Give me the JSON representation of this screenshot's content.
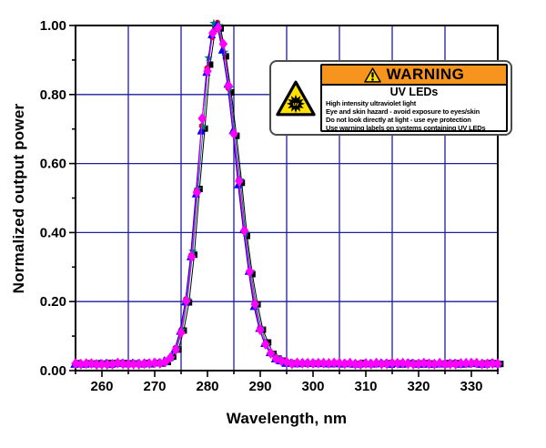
{
  "warning_label": {
    "header": "WARNING",
    "title": "UV LEDs",
    "icon_text": "UV",
    "header_bg": "#F7941D",
    "lines": [
      "High intensity ultraviolet light",
      "Eye and skin hazard - avoid exposure to eyes/skin",
      "Do not look directly at light - use eye protection",
      "Use warning labels on systems containing UV LEDs"
    ]
  },
  "chart_data": {
    "type": "scatter",
    "title": "",
    "xlabel": "Wavelength, nm",
    "ylabel": "Normalized output power",
    "xlim": [
      255,
      335
    ],
    "ylim": [
      0,
      1.0
    ],
    "grid": true,
    "legend": "none",
    "grid_color": "#1E1E9E",
    "axis_color": "#000000",
    "x_tick_labels": [
      260,
      270,
      280,
      290,
      300,
      310,
      320,
      330
    ],
    "x_minor_tick_step": 5,
    "x_gridlines": [
      265,
      275,
      285,
      295,
      305,
      315,
      325
    ],
    "y_tick_labels": [
      "0.00",
      "0.20",
      "0.40",
      "0.60",
      "0.80",
      "1.00"
    ],
    "y_tick_values": [
      0,
      0.2,
      0.4,
      0.6,
      0.8,
      1.0
    ],
    "y_minor_tick_step": 0.1,
    "y_gridlines": [
      0.2,
      0.4,
      0.6,
      0.8
    ],
    "peak_nm": 281.5,
    "baseline": 0.02,
    "x_start": 255,
    "x_step": 1,
    "base_values": [
      0.02,
      0.02,
      0.02,
      0.02,
      0.02,
      0.02,
      0.02,
      0.02,
      0.02,
      0.02,
      0.02,
      0.02,
      0.02,
      0.02,
      0.02,
      0.021,
      0.022,
      0.027,
      0.038,
      0.063,
      0.114,
      0.203,
      0.338,
      0.516,
      0.712,
      0.885,
      0.986,
      0.992,
      0.933,
      0.826,
      0.688,
      0.54,
      0.401,
      0.282,
      0.189,
      0.123,
      0.078,
      0.051,
      0.036,
      0.027,
      0.023,
      0.021,
      0.021,
      0.02,
      0.02,
      0.02,
      0.02,
      0.02,
      0.02,
      0.02,
      0.02,
      0.02,
      0.02,
      0.02,
      0.02,
      0.02,
      0.02,
      0.02,
      0.02,
      0.02,
      0.02,
      0.02,
      0.02,
      0.02,
      0.02,
      0.02,
      0.02,
      0.02,
      0.02,
      0.02,
      0.02,
      0.02,
      0.02,
      0.02,
      0.02,
      0.02,
      0.02,
      0.02,
      0.02,
      0.02,
      0.02
    ],
    "series": [
      {
        "name": "black-squares",
        "marker": "square",
        "color": "#000000",
        "x_shift_nm": 0.5,
        "size": 7,
        "seed": 1
      },
      {
        "name": "red-circles",
        "marker": "circle",
        "color": "#EE0000",
        "x_shift_nm": -0.1,
        "size": 6,
        "seed": 2
      },
      {
        "name": "teal-stars",
        "marker": "star",
        "color": "#007878",
        "x_shift_nm": 0.2,
        "size": 8,
        "seed": 3
      },
      {
        "name": "blue-triangles",
        "marker": "triangle-up",
        "color": "#0000EE",
        "x_shift_nm": -0.2,
        "size": 9,
        "seed": 4
      },
      {
        "name": "magenta-diamonds",
        "marker": "diamond",
        "color": "#FF00FF",
        "x_shift_nm": 0.0,
        "size": 10,
        "seed": 5
      }
    ]
  }
}
